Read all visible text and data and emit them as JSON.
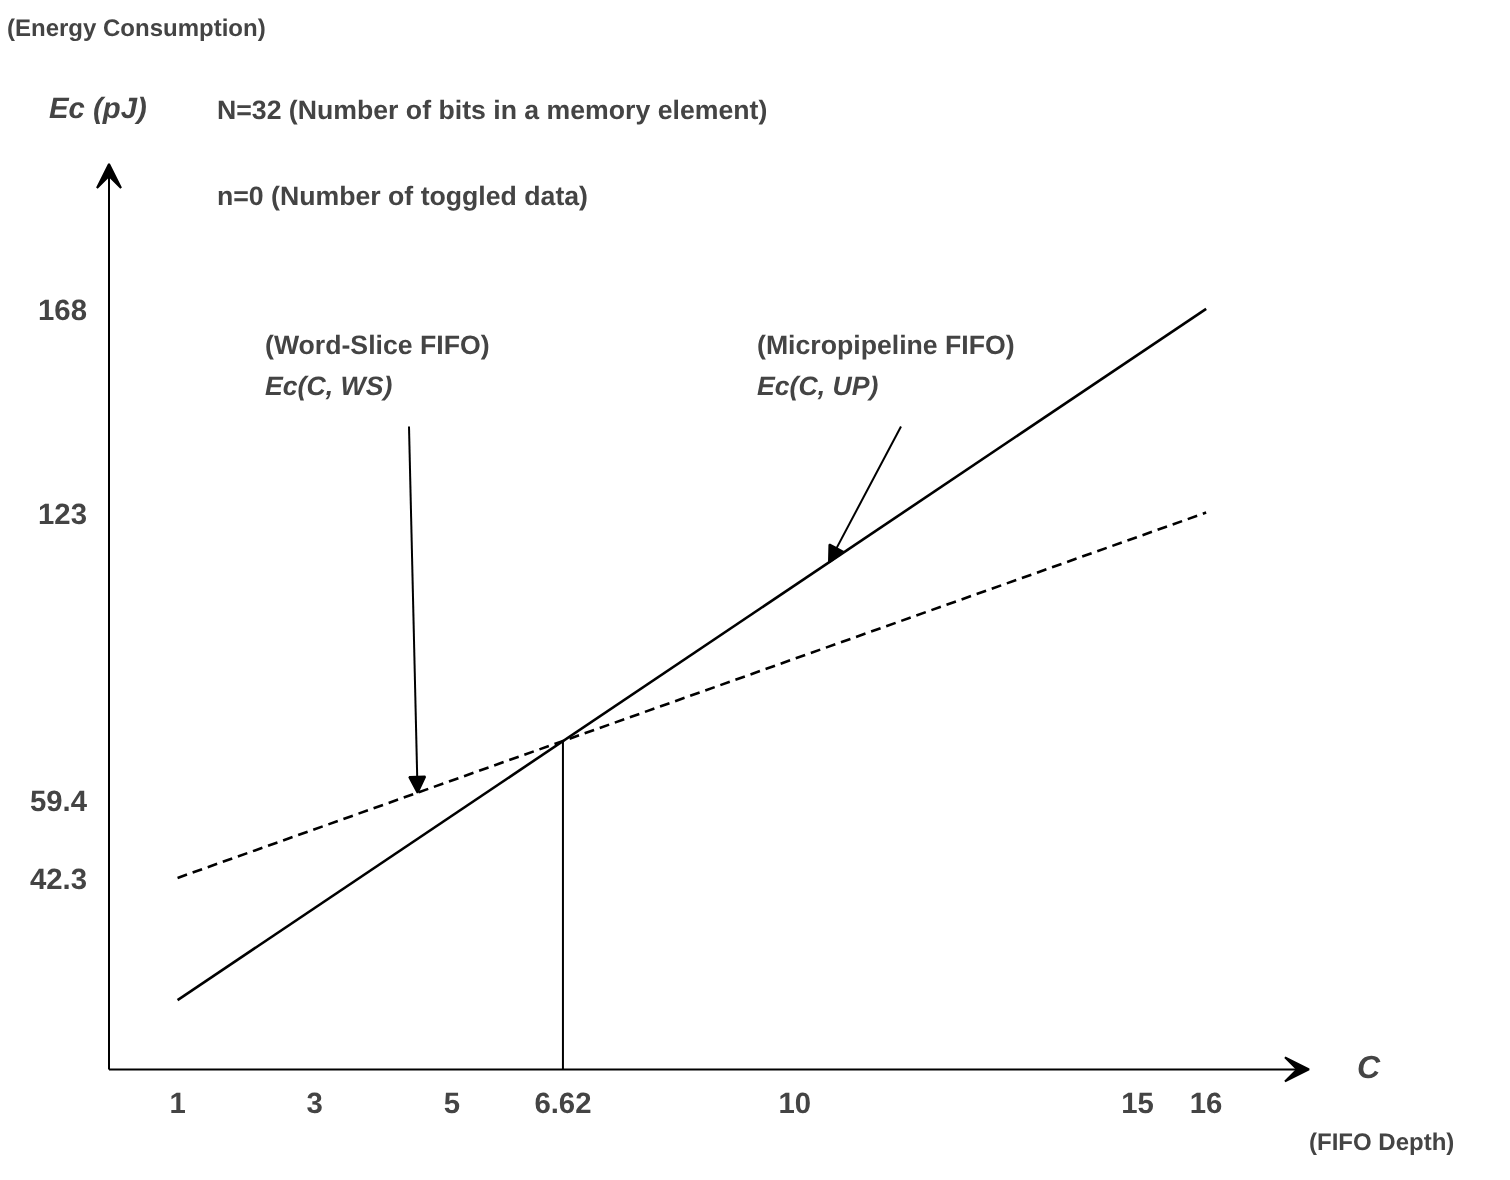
{
  "chart_data": {
    "type": "line",
    "xlabel": "C",
    "ylabel": "Ec (pJ)",
    "x": [
      1,
      16
    ],
    "series": [
      {
        "color": "#000000",
        "values": [
          15.3,
          168
        ],
        "line_style": "solid"
      },
      {
        "color": "#000000",
        "values": [
          42.3,
          123
        ],
        "line_style": "dashed"
      }
    ],
    "xlim": [
      0,
      17.5
    ],
    "ylim": [
      0,
      200
    ],
    "xticks": [
      1,
      3,
      5,
      6.62,
      10,
      15,
      16
    ],
    "yticks": [
      42.3,
      59.4,
      123,
      168
    ],
    "ref_lines": [
      {
        "axis": "x",
        "value": 6.62
      }
    ],
    "grid": false,
    "marker": "none",
    "annotations": [
      "(Energy Consumption)",
      "(FIFO Depth)",
      "N=32   (Number of bits in a memory element)",
      "n=0    (Number of toggled data)",
      {
        "text": "(Word-Slice FIFO)\nEc(C, WS)",
        "x": 4.5,
        "y": 61.1
      },
      {
        "text": "(Micropipeline FIFO)\nEc(C, UP)",
        "x": 10.5,
        "y": 112
      }
    ]
  }
}
